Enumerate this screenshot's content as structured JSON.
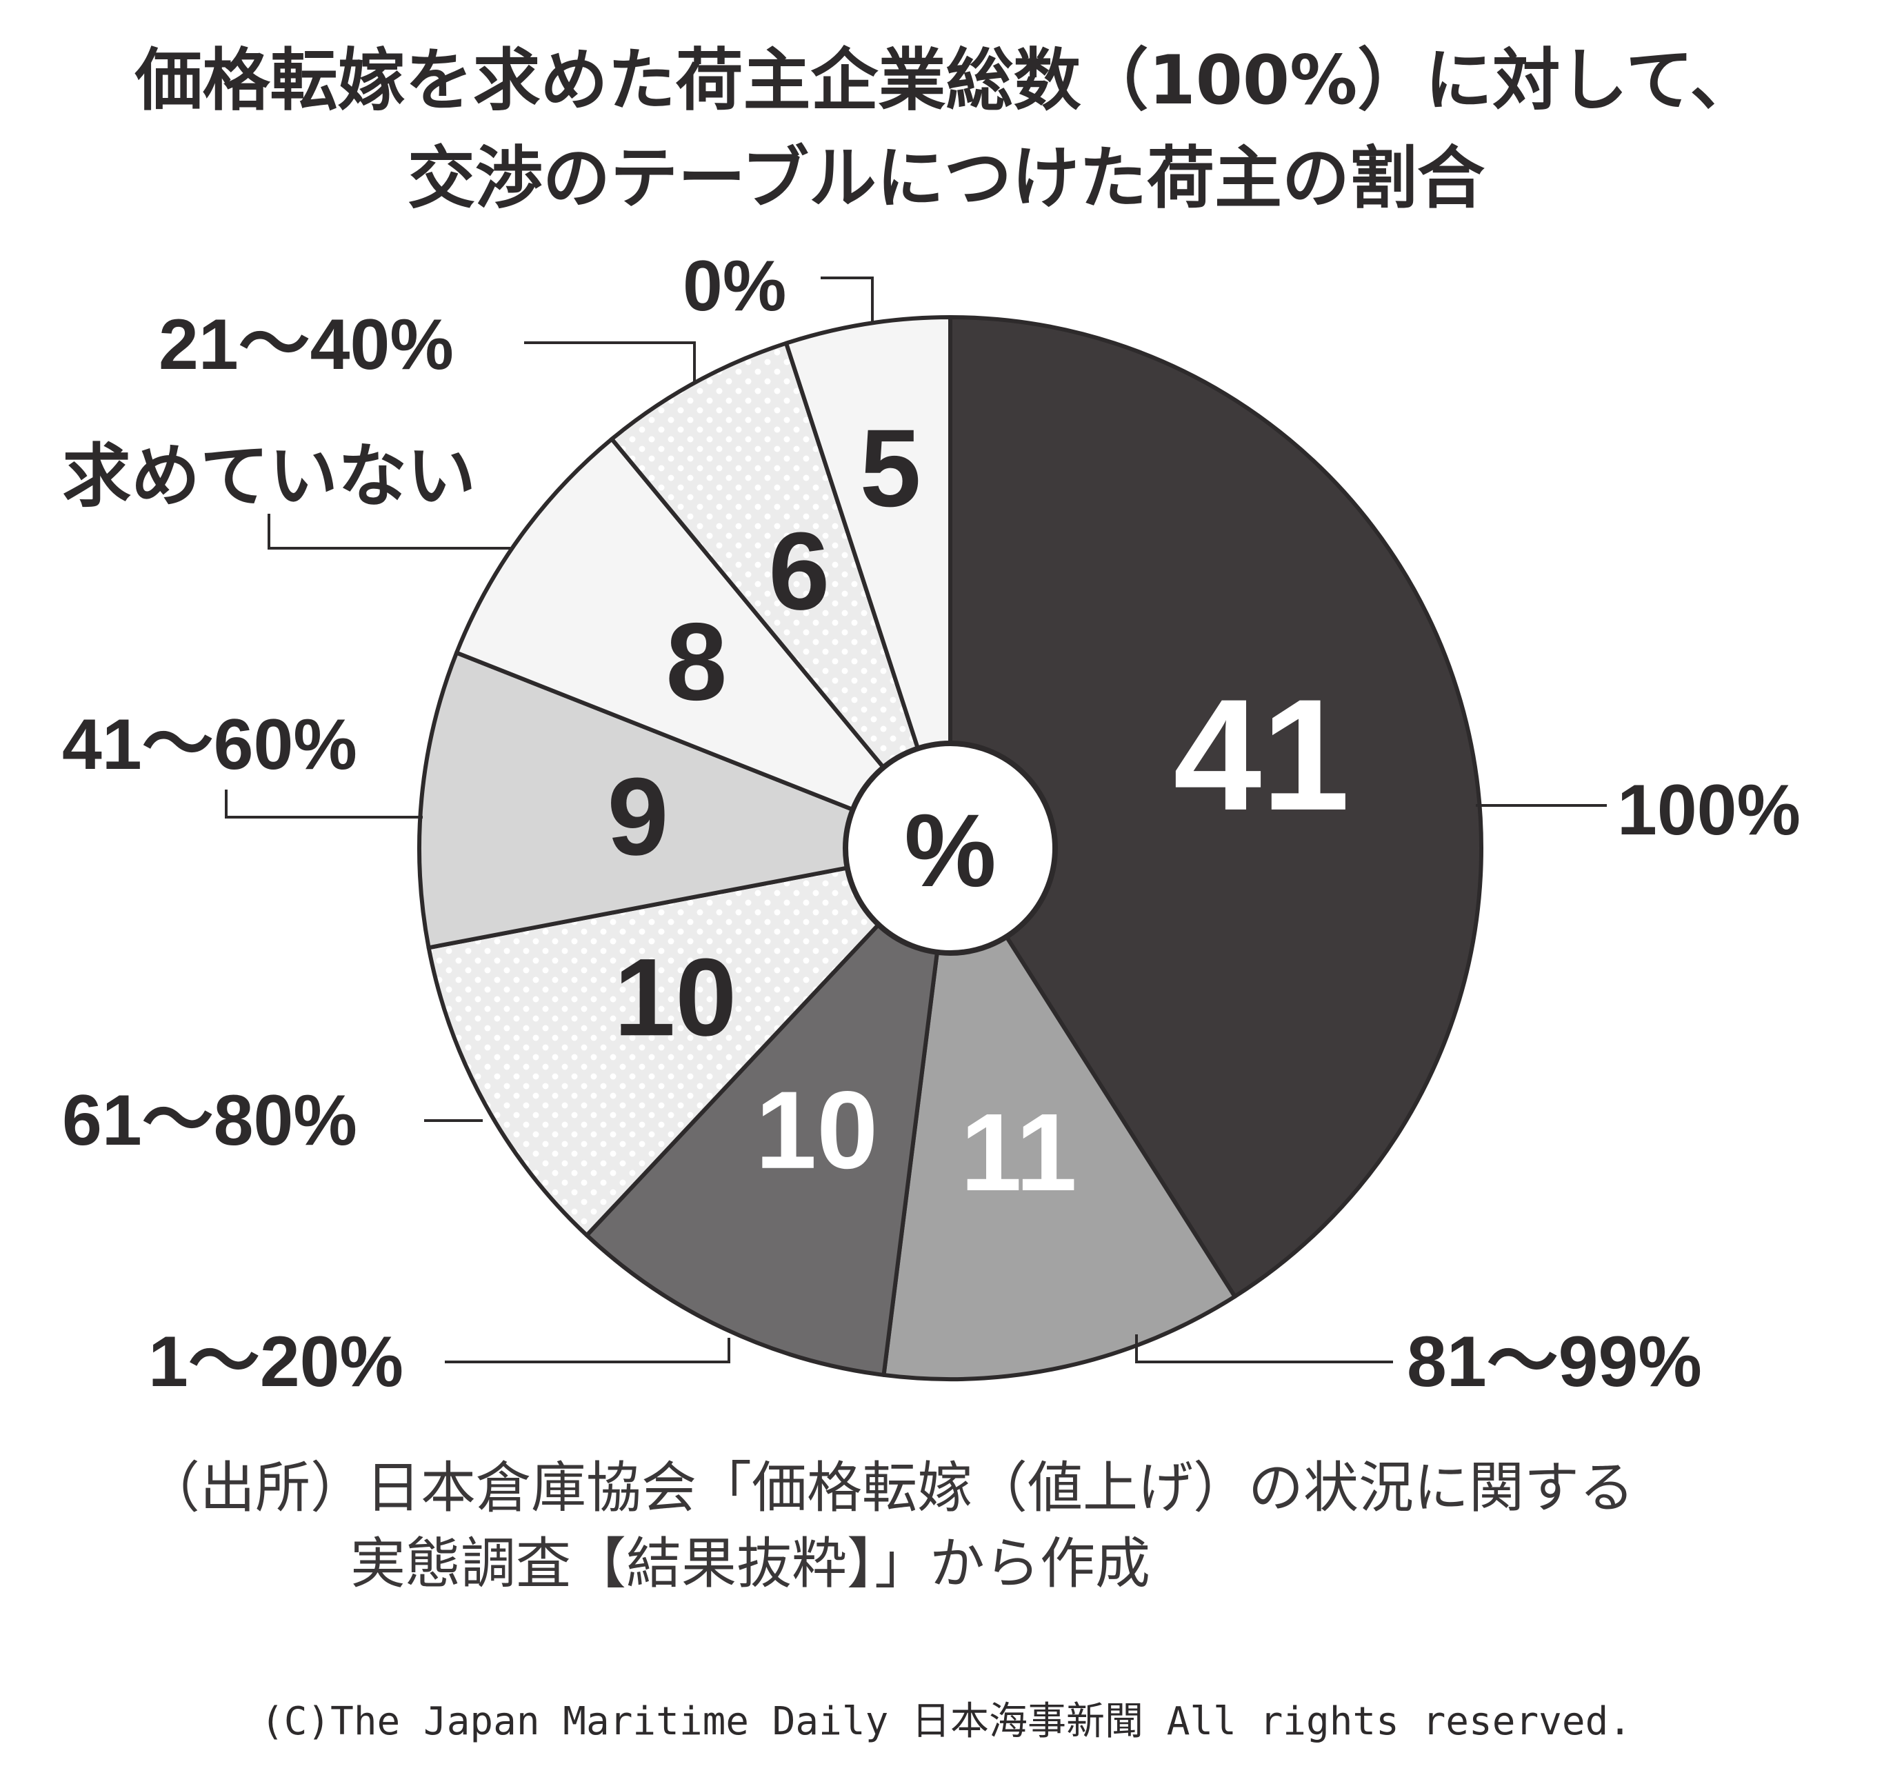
{
  "chart_data": {
    "type": "pie",
    "title_lines": [
      "価格転嫁を求めた荷主企業総数（100%）に対して、",
      "交渉のテーブルにつけた荷主の割合"
    ],
    "center_label": "%",
    "slices": [
      {
        "category": "100%",
        "value": 41,
        "color": "#3e3a3b",
        "pattern": "solid",
        "value_color": "#ffffff"
      },
      {
        "category": "81～99%",
        "value": 11,
        "color": "#a3a3a3",
        "pattern": "solid",
        "value_color": "#ffffff"
      },
      {
        "category": "1～20%",
        "value": 10,
        "color": "#6d6b6c",
        "pattern": "solid",
        "value_color": "#ffffff"
      },
      {
        "category": "61～80%",
        "value": 10,
        "color": "#e9e9e9",
        "pattern": "dots",
        "value_color": "#2d2a2b"
      },
      {
        "category": "41～60%",
        "value": 9,
        "color": "#d6d6d6",
        "pattern": "solid",
        "value_color": "#2d2a2b"
      },
      {
        "category": "求めていない",
        "value": 8,
        "color": "#f5f5f5",
        "pattern": "solid",
        "value_color": "#2d2a2b"
      },
      {
        "category": "21～40%",
        "value": 6,
        "color": "#e9e9e9",
        "pattern": "dots",
        "value_color": "#2d2a2b"
      },
      {
        "category": "0%",
        "value": 5,
        "color": "#f5f5f5",
        "pattern": "solid",
        "value_color": "#2d2a2b"
      }
    ],
    "start": "top",
    "direction": "clockwise"
  },
  "source_lines": [
    "（出所）日本倉庫協会「価格転嫁（値上げ）の状況に関する",
    "実態調査【結果抜粋】」から作成"
  ],
  "copyright": "(C)The Japan Maritime Daily 日本海事新聞 All rights reserved."
}
